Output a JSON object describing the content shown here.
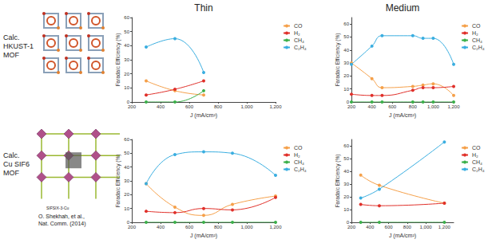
{
  "panels": {
    "columns": [
      "Thin",
      "Medium"
    ],
    "rows": [
      {
        "label": [
          "Calc.",
          "HKUST-1",
          "MOF"
        ]
      },
      {
        "label": [
          "Calc.",
          "Cu SIF6",
          "MOF"
        ],
        "structure_label": "SIFSIX-3-Cu",
        "citation": [
          "O. Shekhah, et al.,",
          "Nat. Comm. (2014)"
        ]
      }
    ]
  },
  "chart_data": [
    {
      "type": "line",
      "xlabel": "J (mA/cm²)",
      "ylabel": "Faradaic Efficiency (%)",
      "xlim": [
        200,
        1200
      ],
      "xticks": [
        200,
        400,
        600,
        800,
        1000,
        1200
      ],
      "ylim": [
        0,
        60
      ],
      "yticks": [
        0,
        10,
        20,
        30,
        40,
        50,
        60
      ],
      "grid": false,
      "legend": "right",
      "marker": "circle",
      "x": [
        300,
        500,
        700
      ],
      "series": [
        {
          "name": "CO",
          "color": "#f5a04a",
          "values": [
            15,
            8,
            5
          ]
        },
        {
          "name": "H₂",
          "color": "#e0302a",
          "values": [
            5,
            9,
            15
          ]
        },
        {
          "name": "CH₄",
          "color": "#3cb04a",
          "values": [
            0,
            0,
            8
          ]
        },
        {
          "name": "C₂H₄",
          "color": "#3aaee0",
          "values": [
            39,
            45,
            21
          ]
        }
      ]
    },
    {
      "type": "line",
      "xlabel": "J (mA/cm²)",
      "ylabel": "Faradaic Efficiency (%)",
      "xlim": [
        200,
        1200
      ],
      "xticks": [
        200,
        400,
        600,
        800,
        1000,
        1200
      ],
      "ylim": [
        0,
        65
      ],
      "yticks": [
        0,
        10,
        20,
        30,
        40,
        50,
        60
      ],
      "grid": false,
      "legend": "right",
      "marker": "circle",
      "x": [
        200,
        400,
        500,
        800,
        900,
        1000,
        1200
      ],
      "series": [
        {
          "name": "CO",
          "color": "#f5a04a",
          "values": [
            30,
            18,
            11,
            12,
            13,
            14,
            5
          ]
        },
        {
          "name": "H₂",
          "color": "#e0302a",
          "values": [
            6,
            5,
            5,
            9,
            11,
            11,
            12
          ]
        },
        {
          "name": "CH₄",
          "color": "#3cb04a",
          "values": [
            0,
            0,
            0,
            0,
            0,
            0,
            0
          ]
        },
        {
          "name": "C₂H₄",
          "color": "#3aaee0",
          "values": [
            29,
            43,
            51,
            51,
            49,
            49,
            29
          ]
        }
      ]
    },
    {
      "type": "line",
      "xlabel": "J (mA/cm²)",
      "ylabel": "Faradaic Efficiency (%)",
      "xlim": [
        200,
        1200
      ],
      "xticks": [
        200,
        400,
        600,
        800,
        1000,
        1200
      ],
      "ylim": [
        0,
        60
      ],
      "yticks": [
        0,
        10,
        20,
        30,
        40,
        50,
        60
      ],
      "grid": false,
      "legend": "right",
      "marker": "circle",
      "x": [
        300,
        500,
        700,
        900,
        1200
      ],
      "series": [
        {
          "name": "CO",
          "color": "#f5a04a",
          "values": [
            28,
            11,
            5,
            13,
            19
          ]
        },
        {
          "name": "H₂",
          "color": "#e0302a",
          "values": [
            8,
            7,
            10,
            9,
            18
          ]
        },
        {
          "name": "CH₄",
          "color": "#3cb04a",
          "values": [
            0,
            0,
            0,
            0,
            0
          ]
        },
        {
          "name": "C₂H₄",
          "color": "#3aaee0",
          "values": [
            28,
            49,
            51,
            50,
            34
          ]
        }
      ]
    },
    {
      "type": "line",
      "xlabel": "J (mA/cm²)",
      "ylabel": "Faradaic Efficiency (%)",
      "xlim": [
        200,
        1300
      ],
      "xticks": [
        200,
        400,
        600,
        800,
        1000,
        1200
      ],
      "ylim": [
        0,
        65
      ],
      "yticks": [
        0,
        10,
        20,
        30,
        40,
        50,
        60
      ],
      "grid": false,
      "legend": "right",
      "marker": "circle",
      "x": [
        300,
        500,
        1200
      ],
      "series": [
        {
          "name": "CO",
          "color": "#f5a04a",
          "values": [
            37,
            29,
            15
          ]
        },
        {
          "name": "H₂",
          "color": "#e0302a",
          "values": [
            14,
            13,
            15
          ]
        },
        {
          "name": "CH₄",
          "color": "#3cb04a",
          "values": [
            0,
            0,
            0
          ]
        },
        {
          "name": "C₂H₄",
          "color": "#3aaee0",
          "values": [
            19,
            26,
            63
          ]
        }
      ]
    }
  ]
}
